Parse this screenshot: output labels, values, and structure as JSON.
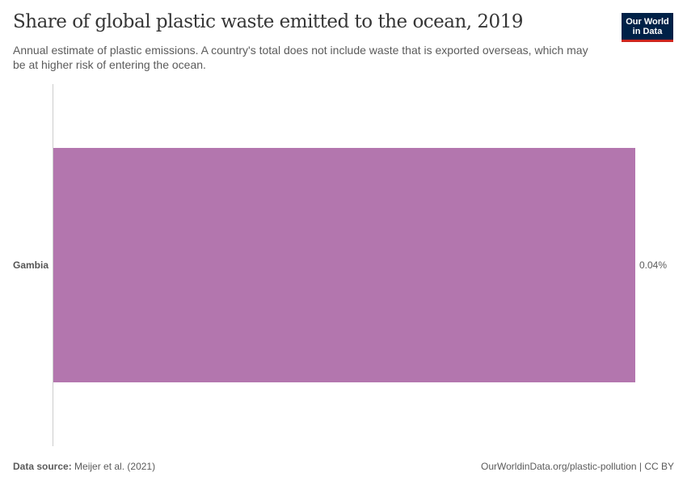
{
  "header": {
    "title": "Share of global plastic waste emitted to the ocean, 2019",
    "subtitle": "Annual estimate of plastic emissions. A country's total does not include waste that is exported overseas, which may be at higher risk of entering the ocean.",
    "logo_line1": "Our World",
    "logo_line2": "in Data"
  },
  "colors": {
    "bar": "#b376ae",
    "logo_bg": "#002147",
    "logo_accent": "#ce261e"
  },
  "footer": {
    "source_label": "Data source:",
    "source_value": " Meijer et al. (2021)",
    "attribution": "OurWorldinData.org/plastic-pollution | CC BY"
  },
  "chart_data": {
    "type": "bar",
    "orientation": "horizontal",
    "title": "Share of global plastic waste emitted to the ocean, 2019",
    "subtitle": "Annual estimate of plastic emissions. A country's total does not include waste that is exported overseas, which may be at higher risk of entering the ocean.",
    "categories": [
      "Gambia"
    ],
    "values": [
      0.04
    ],
    "value_labels": [
      "0.04%"
    ],
    "unit": "%",
    "xlabel": "",
    "ylabel": "",
    "grid": false,
    "legend": null
  }
}
